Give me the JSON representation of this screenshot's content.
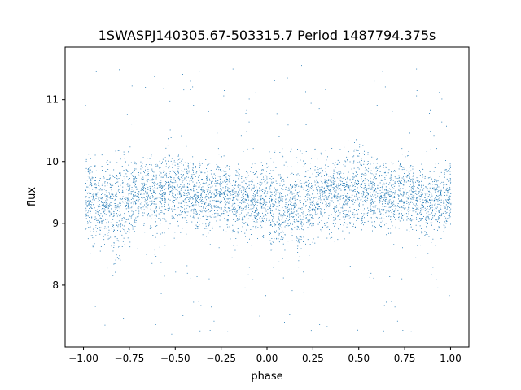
{
  "chart_data": {
    "type": "scatter",
    "title": "1SWASPJ140305.67-503315.7 Period 1487794.375s",
    "xlabel": "phase",
    "ylabel": "flux",
    "xlim": [
      -1.1,
      1.1
    ],
    "ylim": [
      7.0,
      11.85
    ],
    "xticks": [
      -1.0,
      -0.75,
      -0.5,
      -0.25,
      0.0,
      0.25,
      0.5,
      0.75,
      1.0
    ],
    "xtick_labels": [
      "−1.00",
      "−0.75",
      "−0.50",
      "−0.25",
      "0.00",
      "0.25",
      "0.50",
      "0.75",
      "1.00"
    ],
    "yticks": [
      8,
      9,
      10,
      11
    ],
    "ytick_labels": [
      "8",
      "9",
      "10",
      "11"
    ],
    "grid": false,
    "marker_color": "#1f77b4",
    "series": [
      {
        "name": "",
        "x_range": [
          -1.0,
          1.0
        ],
        "point_count": 5200,
        "median_flux": 9.4,
        "typical_flux_range": [
          8.6,
          10.1
        ],
        "outlier_flux_range": [
          7.2,
          11.6
        ],
        "periodicity_in_phase": 1.0,
        "clusters": [
          {
            "phase": -0.97,
            "center": 9.4,
            "spread": 0.45
          },
          {
            "phase": -0.92,
            "center": 9.35,
            "spread": 0.45
          },
          {
            "phase": -0.87,
            "center": 9.3,
            "spread": 0.4
          },
          {
            "phase": -0.82,
            "center": 9.2,
            "spread": 0.55
          },
          {
            "phase": -0.77,
            "center": 9.3,
            "spread": 0.45
          },
          {
            "phase": -0.72,
            "center": 9.45,
            "spread": 0.4
          },
          {
            "phase": -0.67,
            "center": 9.5,
            "spread": 0.35
          },
          {
            "phase": -0.62,
            "center": 9.45,
            "spread": 0.4
          },
          {
            "phase": -0.57,
            "center": 9.5,
            "spread": 0.4
          },
          {
            "phase": -0.52,
            "center": 9.6,
            "spread": 0.45
          },
          {
            "phase": -0.47,
            "center": 9.55,
            "spread": 0.4
          },
          {
            "phase": -0.42,
            "center": 9.5,
            "spread": 0.35
          },
          {
            "phase": -0.37,
            "center": 9.45,
            "spread": 0.35
          },
          {
            "phase": -0.32,
            "center": 9.45,
            "spread": 0.4
          },
          {
            "phase": -0.27,
            "center": 9.5,
            "spread": 0.35
          },
          {
            "phase": -0.22,
            "center": 9.45,
            "spread": 0.35
          },
          {
            "phase": -0.17,
            "center": 9.35,
            "spread": 0.35
          },
          {
            "phase": -0.12,
            "center": 9.3,
            "spread": 0.35
          },
          {
            "phase": -0.07,
            "center": 9.35,
            "spread": 0.35
          },
          {
            "phase": -0.02,
            "center": 9.4,
            "spread": 0.35
          },
          {
            "phase": 0.03,
            "center": 9.35,
            "spread": 0.45
          },
          {
            "phase": 0.08,
            "center": 9.3,
            "spread": 0.45
          },
          {
            "phase": 0.13,
            "center": 9.35,
            "spread": 0.4
          },
          {
            "phase": 0.18,
            "center": 9.2,
            "spread": 0.55
          },
          {
            "phase": 0.23,
            "center": 9.3,
            "spread": 0.45
          },
          {
            "phase": 0.28,
            "center": 9.45,
            "spread": 0.4
          },
          {
            "phase": 0.33,
            "center": 9.5,
            "spread": 0.35
          },
          {
            "phase": 0.38,
            "center": 9.45,
            "spread": 0.4
          },
          {
            "phase": 0.43,
            "center": 9.5,
            "spread": 0.4
          },
          {
            "phase": 0.48,
            "center": 9.6,
            "spread": 0.45
          },
          {
            "phase": 0.53,
            "center": 9.55,
            "spread": 0.4
          },
          {
            "phase": 0.58,
            "center": 9.5,
            "spread": 0.35
          },
          {
            "phase": 0.63,
            "center": 9.45,
            "spread": 0.35
          },
          {
            "phase": 0.68,
            "center": 9.45,
            "spread": 0.4
          },
          {
            "phase": 0.73,
            "center": 9.5,
            "spread": 0.35
          },
          {
            "phase": 0.78,
            "center": 9.45,
            "spread": 0.35
          },
          {
            "phase": 0.83,
            "center": 9.35,
            "spread": 0.35
          },
          {
            "phase": 0.88,
            "center": 9.3,
            "spread": 0.35
          },
          {
            "phase": 0.93,
            "center": 9.35,
            "spread": 0.35
          },
          {
            "phase": 0.98,
            "center": 9.4,
            "spread": 0.35
          }
        ]
      }
    ]
  }
}
